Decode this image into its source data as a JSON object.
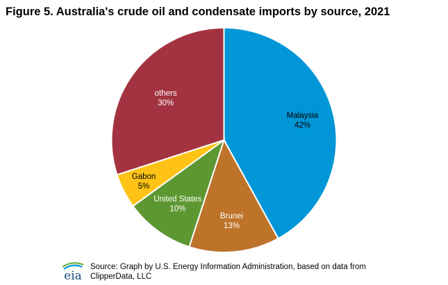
{
  "title": "Figure 5. Australia's crude oil and condensate imports by source, 2021",
  "chart_data": {
    "type": "pie",
    "title": "Figure 5. Australia's crude oil and condensate imports by source, 2021",
    "start_angle_deg": 0,
    "direction": "clockwise",
    "slices": [
      {
        "label": "Malaysia",
        "value": 42,
        "value_label": "42%",
        "color": "#0096d7",
        "text_color": "#000000"
      },
      {
        "label": "Brunei",
        "value": 13,
        "value_label": "13%",
        "color": "#bd732a",
        "text_color": "#ffffff"
      },
      {
        "label": "United States",
        "value": 10,
        "value_label": "10%",
        "color": "#5d9732",
        "text_color": "#ffffff"
      },
      {
        "label": "Gabon",
        "value": 5,
        "value_label": "5%",
        "color": "#ffc317",
        "text_color": "#000000"
      },
      {
        "label": "others",
        "value": 30,
        "value_label": "30%",
        "color": "#a33340",
        "text_color": "#ffffff"
      }
    ]
  },
  "footer": {
    "logo_text": "eia",
    "source_line1": "Source: Graph by U.S. Energy Information Administration, based on data from",
    "source_line2": "ClipperData, LLC"
  }
}
